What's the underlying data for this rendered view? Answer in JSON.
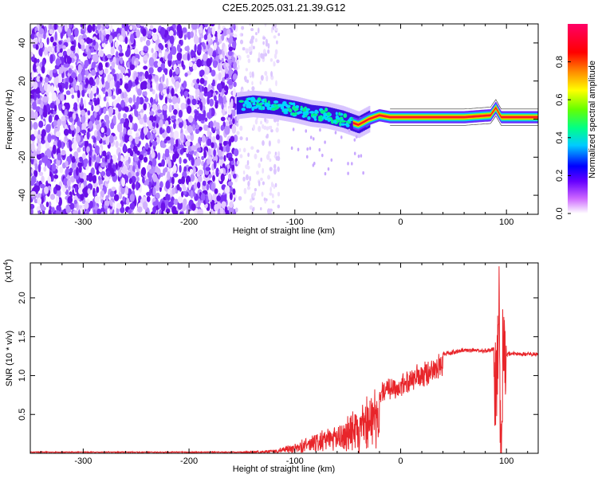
{
  "title": "C2E5.2025.031.21.39.G12",
  "chart_data": [
    {
      "type": "heatmap",
      "xlabel": "Height of straight line (km)",
      "ylabel": "Frequency (Hz)",
      "xlim": [
        -350,
        130
      ],
      "ylim": [
        -50,
        50
      ],
      "x_ticks": [
        -300,
        -200,
        -100,
        0,
        100
      ],
      "y_ticks": [
        -40,
        -20,
        0,
        20,
        40
      ],
      "colorbar": {
        "label": "Normalized spectral amplitude",
        "range": [
          0.0,
          1.0
        ],
        "ticks": [
          "0.0",
          "0.2",
          "0.4",
          "0.6",
          "0.8"
        ],
        "colors": [
          "#ffffff",
          "#cc66ff",
          "#6600ff",
          "#0000ff",
          "#00ccff",
          "#00ff88",
          "#66ff00",
          "#ffff00",
          "#ff8800",
          "#ff0000",
          "#ff0066"
        ]
      },
      "features": {
        "noise_region_x": [
          -350,
          -155
        ],
        "sparse_noise_x": [
          -155,
          -115
        ],
        "signal_track": [
          {
            "x": -155,
            "y": 7
          },
          {
            "x": -140,
            "y": 8
          },
          {
            "x": -120,
            "y": 7
          },
          {
            "x": -100,
            "y": 5
          },
          {
            "x": -85,
            "y": 3
          },
          {
            "x": -70,
            "y": 2
          },
          {
            "x": -55,
            "y": 0
          },
          {
            "x": -40,
            "y": -3
          },
          {
            "x": -30,
            "y": 0
          },
          {
            "x": -20,
            "y": 2
          },
          {
            "x": -10,
            "y": 1
          },
          {
            "x": 0,
            "y": 1
          },
          {
            "x": 30,
            "y": 1
          },
          {
            "x": 60,
            "y": 1
          },
          {
            "x": 85,
            "y": 2
          },
          {
            "x": 90,
            "y": 6
          },
          {
            "x": 95,
            "y": 1
          },
          {
            "x": 130,
            "y": 1
          }
        ]
      }
    },
    {
      "type": "line",
      "xlabel": "Height of straight line (km)",
      "ylabel": "SNR (10 * v/v)",
      "y_multiplier": "(x10",
      "y_multiplier_exp": "4",
      "xlim": [
        -350,
        130
      ],
      "ylim": [
        0,
        2.45
      ],
      "x_ticks": [
        -300,
        -200,
        -100,
        0,
        100
      ],
      "y_ticks": [
        "0.5",
        "1.0",
        "1.5",
        "2.0"
      ],
      "color": "#e8252a",
      "envelope": [
        {
          "x": -350,
          "y": 0.02
        },
        {
          "x": -150,
          "y": 0.02
        },
        {
          "x": -120,
          "y": 0.04
        },
        {
          "x": -100,
          "y": 0.12
        },
        {
          "x": -80,
          "y": 0.25
        },
        {
          "x": -60,
          "y": 0.35
        },
        {
          "x": -40,
          "y": 0.55
        },
        {
          "x": -20,
          "y": 0.9
        },
        {
          "x": 0,
          "y": 1.0
        },
        {
          "x": 20,
          "y": 1.15
        },
        {
          "x": 40,
          "y": 1.3
        },
        {
          "x": 60,
          "y": 1.35
        },
        {
          "x": 85,
          "y": 1.35
        },
        {
          "x": 90,
          "y": 1.4
        },
        {
          "x": 93,
          "y": 2.4
        },
        {
          "x": 95,
          "y": 0.05
        },
        {
          "x": 97,
          "y": 2.4
        },
        {
          "x": 100,
          "y": 1.3
        },
        {
          "x": 130,
          "y": 1.3
        }
      ]
    }
  ]
}
